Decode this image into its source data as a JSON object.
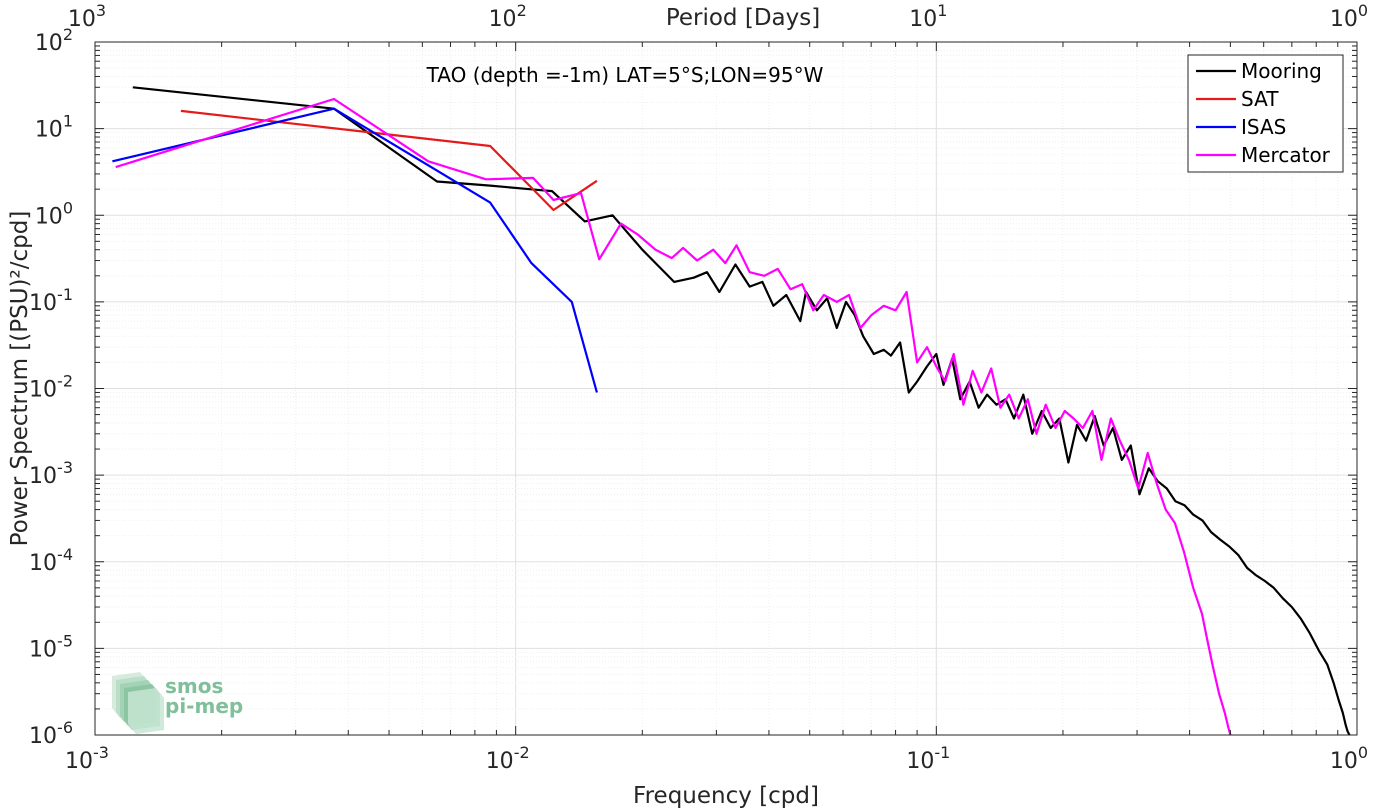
{
  "chart_data": {
    "type": "line",
    "title": "TAO (depth =-1m) LAT=5°S;LON=95°W",
    "xlabel": "Frequency [cpd]",
    "ylabel": "Power Spectrum [(PSU)²/cpd]",
    "x2label": "Period [Days]",
    "x_scale": "log",
    "y_scale": "log",
    "xlim": [
      0.001,
      1
    ],
    "ylim": [
      1e-06,
      100
    ],
    "x_ticks": [
      {
        "v": 0.001,
        "base": "10",
        "exp": "-3"
      },
      {
        "v": 0.01,
        "base": "10",
        "exp": "-2"
      },
      {
        "v": 0.1,
        "base": "10",
        "exp": "-1"
      },
      {
        "v": 1,
        "base": "10",
        "exp": "0"
      }
    ],
    "x2_ticks": [
      {
        "v": 0.001,
        "base": "10",
        "exp": "3"
      },
      {
        "v": 0.01,
        "base": "10",
        "exp": "2"
      },
      {
        "v": 0.1,
        "base": "10",
        "exp": "1"
      },
      {
        "v": 1,
        "base": "10",
        "exp": "0"
      }
    ],
    "y_ticks": [
      {
        "v": 100,
        "base": "10",
        "exp": "2"
      },
      {
        "v": 10,
        "base": "10",
        "exp": "1"
      },
      {
        "v": 1,
        "base": "10",
        "exp": "0"
      },
      {
        "v": 0.1,
        "base": "10",
        "exp": "-1"
      },
      {
        "v": 0.01,
        "base": "10",
        "exp": "-2"
      },
      {
        "v": 0.001,
        "base": "10",
        "exp": "-3"
      },
      {
        "v": 0.0001,
        "base": "10",
        "exp": "-4"
      },
      {
        "v": 1e-05,
        "base": "10",
        "exp": "-5"
      },
      {
        "v": 1e-06,
        "base": "10",
        "exp": "-6"
      }
    ],
    "grid": true,
    "legend_position": "top-right",
    "logo": {
      "line1": "smos",
      "line2": "pi-mep"
    },
    "series": [
      {
        "name": "Mooring",
        "color": "#000000",
        "x": [
          0.00123,
          0.0037,
          0.0065,
          0.0087,
          0.0108,
          0.0122,
          0.0146,
          0.017,
          0.02,
          0.0238,
          0.0265,
          0.0285,
          0.0305,
          0.0333,
          0.036,
          0.0386,
          0.041,
          0.044,
          0.0475,
          0.049,
          0.052,
          0.055,
          0.058,
          0.061,
          0.064,
          0.067,
          0.071,
          0.075,
          0.078,
          0.082,
          0.086,
          0.09,
          0.095,
          0.1,
          0.104,
          0.109,
          0.114,
          0.12,
          0.126,
          0.132,
          0.139,
          0.146,
          0.153,
          0.161,
          0.169,
          0.178,
          0.187,
          0.196,
          0.206,
          0.216,
          0.227,
          0.238,
          0.25,
          0.263,
          0.276,
          0.29,
          0.304,
          0.32,
          0.336,
          0.353,
          0.37,
          0.389,
          0.408,
          0.429,
          0.45,
          0.473,
          0.497,
          0.522,
          0.548,
          0.575,
          0.604,
          0.634,
          0.666,
          0.7,
          0.735,
          0.772,
          0.811,
          0.85,
          0.88,
          0.905,
          0.925,
          0.94,
          0.95,
          0.96
        ],
        "y": [
          30,
          17,
          2.45,
          2.2,
          2.0,
          1.9,
          0.85,
          1.0,
          0.4,
          0.17,
          0.19,
          0.22,
          0.13,
          0.27,
          0.15,
          0.17,
          0.09,
          0.12,
          0.06,
          0.13,
          0.08,
          0.11,
          0.05,
          0.1,
          0.07,
          0.04,
          0.025,
          0.028,
          0.024,
          0.034,
          0.009,
          0.012,
          0.018,
          0.025,
          0.011,
          0.022,
          0.0075,
          0.012,
          0.006,
          0.0085,
          0.0065,
          0.0075,
          0.0045,
          0.0085,
          0.003,
          0.0055,
          0.0035,
          0.0045,
          0.0014,
          0.0038,
          0.0025,
          0.0048,
          0.0022,
          0.0035,
          0.0015,
          0.0022,
          0.0006,
          0.0012,
          0.00085,
          0.0007,
          0.0005,
          0.00045,
          0.00035,
          0.0003,
          0.00022,
          0.00018,
          0.00015,
          0.00012,
          8.5e-05,
          7e-05,
          6e-05,
          5e-05,
          3.8e-05,
          3e-05,
          2.2e-05,
          1.5e-05,
          9.5e-06,
          6.5e-06,
          4e-06,
          2.5e-06,
          1.8e-06,
          1.3e-06,
          1.1e-06,
          1e-06
        ]
      },
      {
        "name": "SAT",
        "color": "#e41a1c",
        "x": [
          0.0016,
          0.0087,
          0.0123,
          0.0156
        ],
        "y": [
          16,
          6.3,
          1.15,
          2.5
        ]
      },
      {
        "name": "ISAS",
        "color": "#0000ff",
        "x": [
          0.0011,
          0.0037,
          0.0087,
          0.0109,
          0.0136,
          0.0156
        ],
        "y": [
          4.2,
          17,
          1.4,
          0.28,
          0.1,
          0.009
        ]
      },
      {
        "name": "Mercator",
        "color": "#ff00ff",
        "x": [
          0.00112,
          0.0037,
          0.0062,
          0.0085,
          0.011,
          0.0123,
          0.0143,
          0.0158,
          0.0178,
          0.0195,
          0.0215,
          0.0235,
          0.025,
          0.027,
          0.0295,
          0.0315,
          0.0335,
          0.036,
          0.039,
          0.042,
          0.045,
          0.048,
          0.051,
          0.054,
          0.058,
          0.062,
          0.066,
          0.07,
          0.075,
          0.08,
          0.085,
          0.09,
          0.095,
          0.1,
          0.105,
          0.11,
          0.116,
          0.122,
          0.128,
          0.135,
          0.142,
          0.149,
          0.157,
          0.165,
          0.173,
          0.182,
          0.192,
          0.202,
          0.212,
          0.223,
          0.235,
          0.247,
          0.26,
          0.273,
          0.287,
          0.302,
          0.318,
          0.334,
          0.351,
          0.369,
          0.388,
          0.408,
          0.428,
          0.44,
          0.455,
          0.47,
          0.485,
          0.495,
          0.5
        ],
        "y": [
          3.6,
          22,
          4.2,
          2.6,
          2.7,
          1.5,
          1.8,
          0.31,
          0.8,
          0.6,
          0.4,
          0.32,
          0.42,
          0.3,
          0.4,
          0.28,
          0.45,
          0.22,
          0.2,
          0.24,
          0.14,
          0.16,
          0.08,
          0.12,
          0.1,
          0.12,
          0.05,
          0.07,
          0.09,
          0.08,
          0.13,
          0.02,
          0.03,
          0.018,
          0.012,
          0.025,
          0.0065,
          0.016,
          0.009,
          0.017,
          0.006,
          0.0085,
          0.0045,
          0.0075,
          0.003,
          0.0065,
          0.0035,
          0.0055,
          0.0045,
          0.0035,
          0.0055,
          0.0015,
          0.0045,
          0.0025,
          0.0015,
          0.0007,
          0.0018,
          0.0008,
          0.0004,
          0.00028,
          0.00013,
          5e-05,
          2.5e-05,
          1.3e-05,
          6e-06,
          3e-06,
          1.8e-06,
          1.2e-06,
          1e-06
        ]
      }
    ]
  }
}
